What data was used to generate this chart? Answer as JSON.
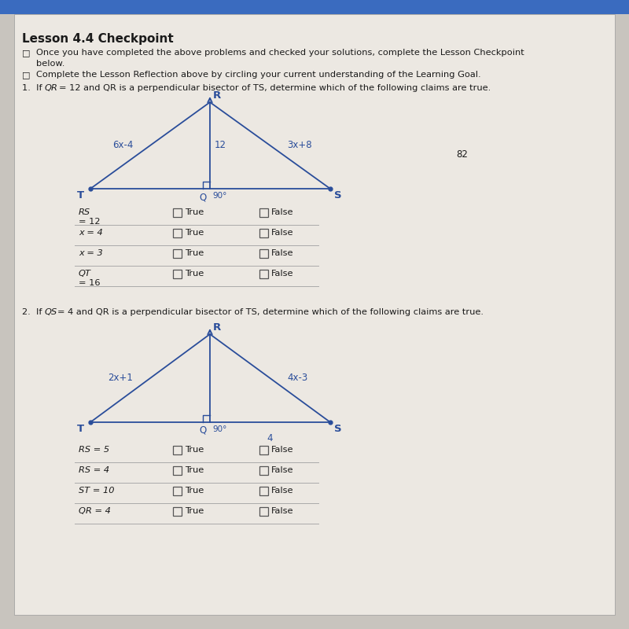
{
  "bg_color": "#d0ccc8",
  "page_bg": "#e8e4de",
  "header_bg": "#3a6bbf",
  "title": "Lesson 4.4 Checkpoint",
  "bullet1a": "Once you have completed the above problems and checked your solutions, complete the Lesson Checkpoint",
  "bullet1b": "below.",
  "bullet2": "Complete the Lesson Reflection above by circling your current understanding of the Learning Goal.",
  "q1_text": "If QR = 12 and QR is a perpendicular bisector of TS, determine which of the following claims are true.",
  "q2_text": "If QS = 4 and QR is a perpendicular bisector of TS, determine which of the following claims are true.",
  "q1_rows": [
    [
      "~RS = 12",
      true
    ],
    [
      "x = 4",
      false
    ],
    [
      "x = 3",
      false
    ],
    [
      "~QT = 16",
      false
    ]
  ],
  "q2_rows": [
    [
      "~RS = 5",
      false
    ],
    [
      "~RS = 4",
      false
    ],
    [
      "~ST = 10",
      false
    ],
    [
      "~QR = 4",
      false
    ]
  ],
  "line_color": "#2a4d9a",
  "text_color": "#1a1a1a",
  "checkbox_color": "#444444",
  "number_82": "82"
}
